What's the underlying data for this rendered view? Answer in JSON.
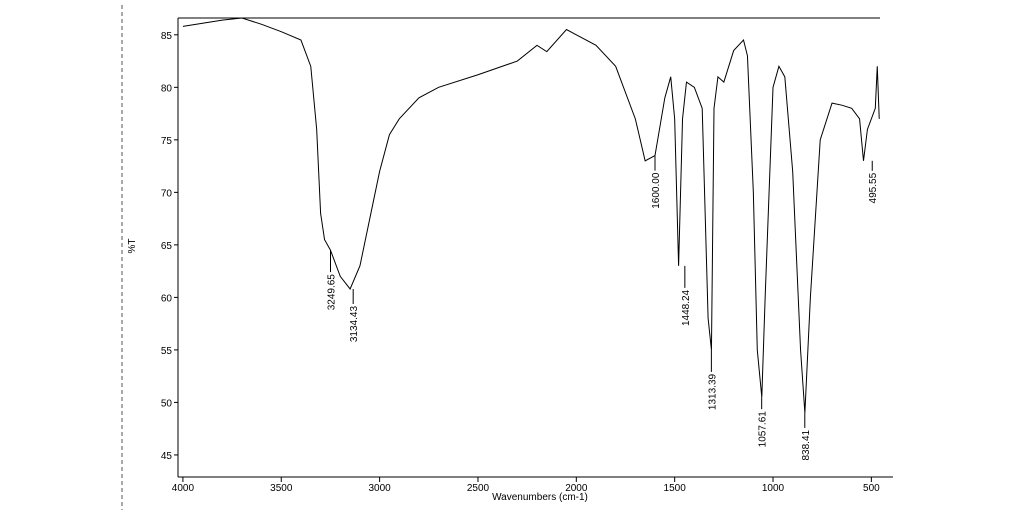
{
  "chart_data": {
    "type": "line",
    "x_label": "Wavenumbers (cm-1)",
    "y_label": "%T",
    "xlim": [
      4025,
      390
    ],
    "ylim": [
      42.9,
      86.6
    ],
    "xticks": [
      4000,
      3500,
      3000,
      2500,
      2000,
      1500,
      1000,
      500
    ],
    "yticks": [
      45,
      50,
      55,
      60,
      65,
      70,
      75,
      80,
      85
    ],
    "grid": false,
    "series": [
      {
        "color": "#000000",
        "x": [
          4000,
          3800,
          3700,
          3600,
          3500,
          3400,
          3350,
          3320,
          3300,
          3280,
          3250,
          3200,
          3150,
          3100,
          3050,
          3000,
          2950,
          2900,
          2800,
          2700,
          2500,
          2300,
          2200,
          2150,
          2050,
          2000,
          1900,
          1800,
          1700,
          1650,
          1600,
          1550,
          1520,
          1500,
          1480,
          1460,
          1440,
          1400,
          1360,
          1330,
          1313,
          1300,
          1280,
          1250,
          1200,
          1150,
          1130,
          1100,
          1080,
          1057,
          1040,
          1000,
          970,
          940,
          900,
          860,
          838,
          810,
          760,
          700,
          650,
          600,
          560,
          540,
          520,
          480,
          470,
          460
        ],
        "values": [
          85.8,
          86.4,
          86.6,
          86.0,
          85.3,
          84.5,
          82,
          76,
          68,
          65.5,
          64.5,
          62,
          60.8,
          63,
          67.5,
          72,
          75.5,
          77,
          79,
          80,
          81.2,
          82.5,
          84,
          83.4,
          85.5,
          85,
          84,
          82,
          77,
          73,
          73.5,
          79,
          81,
          77,
          63,
          77,
          80.5,
          80,
          78,
          58,
          55,
          78,
          81,
          80.5,
          83.5,
          84.5,
          83,
          70,
          55,
          50.5,
          60,
          80,
          82,
          81,
          72,
          55,
          49,
          60,
          75,
          78.5,
          78.3,
          78,
          77,
          73,
          76,
          78,
          82,
          77
        ]
      }
    ],
    "peaks": [
      {
        "x": 3249.65,
        "y": 64.5,
        "label": "3249.65"
      },
      {
        "x": 3134.43,
        "y": 60.8,
        "label": "3134.43"
      },
      {
        "x": 1600.0,
        "y": 73.5,
        "label": "1600.00"
      },
      {
        "x": 1448.24,
        "y": 63,
        "label": "1448.24"
      },
      {
        "x": 1313.39,
        "y": 55,
        "label": "1313.39"
      },
      {
        "x": 1057.61,
        "y": 50.5,
        "label": "1057.61"
      },
      {
        "x": 838.41,
        "y": 49,
        "label": "838.41"
      },
      {
        "x": 495.55,
        "y": 73,
        "label": "495.55"
      }
    ]
  }
}
